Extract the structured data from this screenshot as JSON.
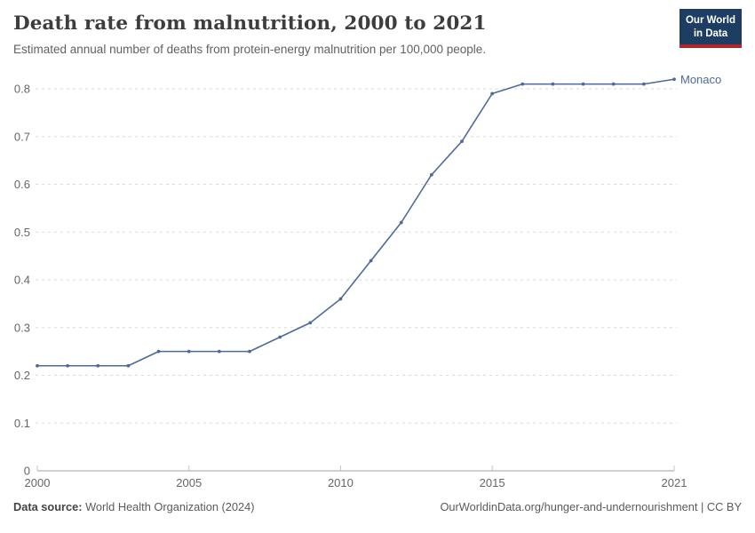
{
  "header": {
    "title": "Death rate from malnutrition, 2000 to 2021",
    "subtitle": "Estimated annual number of deaths from protein-energy malnutrition per 100,000 people.",
    "logo": {
      "line1": "Our World",
      "line2": "in Data"
    }
  },
  "chart_data": {
    "type": "line",
    "title": "Death rate from malnutrition, 2000 to 2021",
    "xlabel": "",
    "ylabel": "",
    "x": [
      2000,
      2001,
      2002,
      2003,
      2004,
      2005,
      2006,
      2007,
      2008,
      2009,
      2010,
      2011,
      2012,
      2013,
      2014,
      2015,
      2016,
      2017,
      2018,
      2019,
      2020,
      2021
    ],
    "series": [
      {
        "name": "Monaco",
        "color": "#4c6a9c",
        "values": [
          0.22,
          0.22,
          0.22,
          0.22,
          0.25,
          0.25,
          0.25,
          0.25,
          0.28,
          0.31,
          0.36,
          0.44,
          0.52,
          0.62,
          0.69,
          0.79,
          0.81,
          0.81,
          0.81,
          0.81,
          0.81,
          0.82
        ]
      }
    ],
    "x_tick_labels": [
      "2000",
      "2005",
      "2010",
      "2015",
      "2021"
    ],
    "x_tick_values": [
      2000,
      2005,
      2010,
      2015,
      2021
    ],
    "y_tick_labels": [
      "0",
      "0.1",
      "0.2",
      "0.3",
      "0.4",
      "0.5",
      "0.6",
      "0.7",
      "0.8"
    ],
    "y_tick_values": [
      0,
      0.1,
      0.2,
      0.3,
      0.4,
      0.5,
      0.6,
      0.7,
      0.8
    ],
    "xlim": [
      2000,
      2021
    ],
    "ylim": [
      0,
      0.84
    ],
    "grid": "horizontal-dashed",
    "legend": "end-of-line-label"
  },
  "colors": {
    "line": "#4c6a9c",
    "series_label": "#4c6a9c",
    "grid": "#dadada",
    "axis": "#a3a3a3",
    "axis_tick": "#c4c4c4",
    "tick_text": "#666666"
  },
  "footer": {
    "datasource_label": "Data source:",
    "datasource_value": " World Health Organization (2024)",
    "right_text": "OurWorldinData.org/hunger-and-undernourishment | CC BY"
  }
}
